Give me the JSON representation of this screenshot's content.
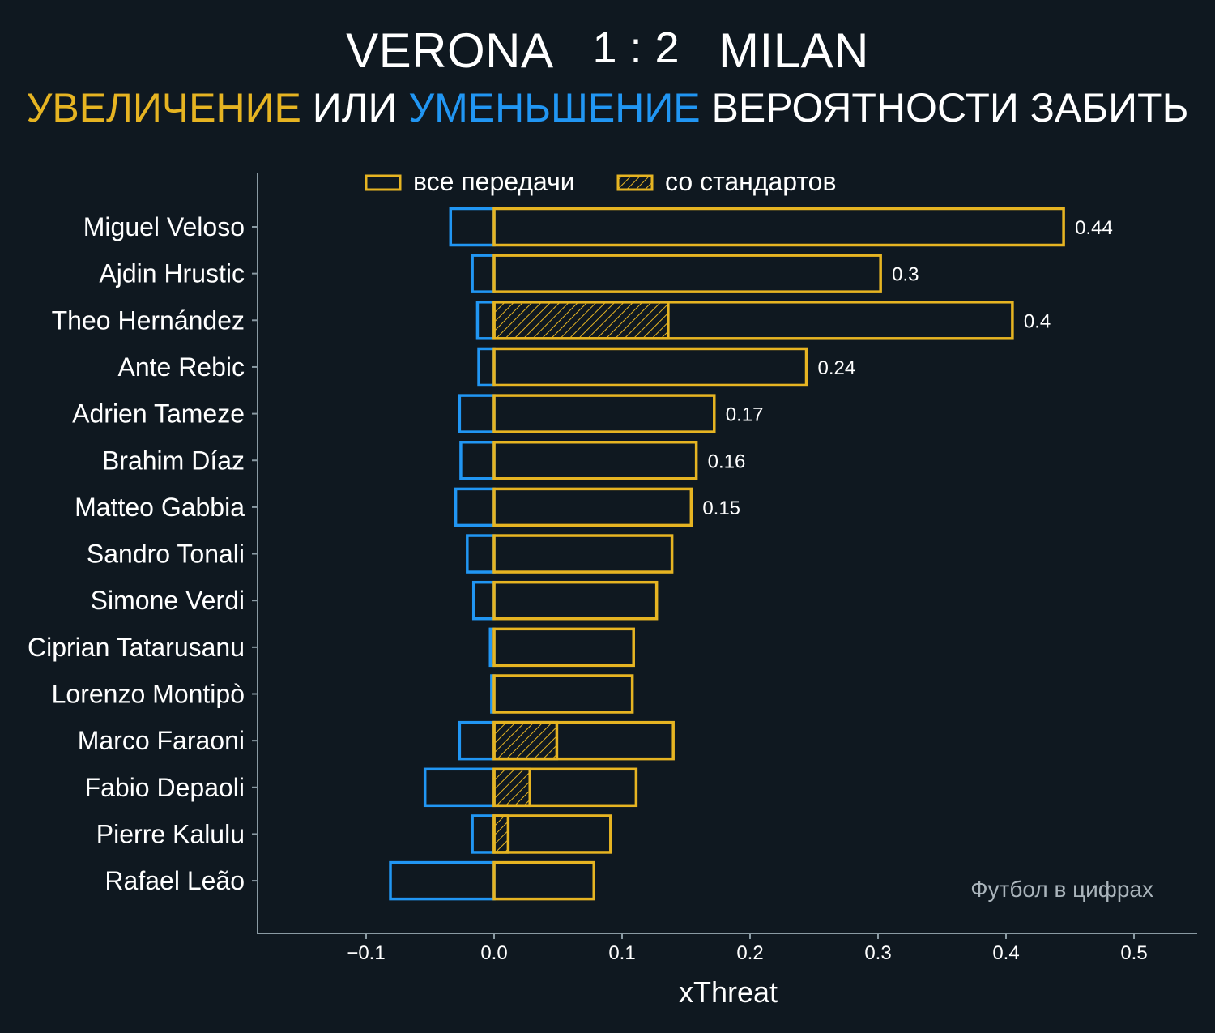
{
  "title": {
    "team_home": "VERONA",
    "score": "1 : 2",
    "team_away": "MILAN",
    "subtitle_increase": "УВЕЛИЧЕНИЕ",
    "subtitle_or": "ИЛИ",
    "subtitle_decrease": "УМЕНЬШЕНИЕ",
    "subtitle_rest": "ВЕРОЯТНОСТИ ЗАБИТЬ"
  },
  "legend": {
    "all_passes": "все передачи",
    "set_pieces": "со стандартов"
  },
  "credit": "Футбол в цифрах",
  "colors": {
    "background": "#0f1820",
    "increase": "#e6b422",
    "decrease": "#2196f3",
    "axis": "#8a9aa3"
  },
  "chart_data": {
    "type": "bar",
    "orientation": "horizontal",
    "xlabel": "xThreat",
    "xlim": [
      -0.185,
      0.55
    ],
    "xticks": [
      -0.1,
      0.0,
      0.1,
      0.2,
      0.3,
      0.4,
      0.5
    ],
    "xtick_labels": [
      "−0.1",
      "0.0",
      "0.1",
      "0.2",
      "0.3",
      "0.4",
      "0.5"
    ],
    "categories": [
      "Miguel Veloso",
      "Ajdin Hrustic",
      "Theo Hernández",
      "Ante Rebic",
      "Adrien Tameze",
      "Brahim Díaz",
      "Matteo Gabbia",
      "Sandro Tonali",
      "Simone Verdi",
      "Ciprian Tatarusanu",
      "Lorenzo Montipò",
      "Marco Faraoni",
      "Fabio Depaoli",
      "Pierre Kalulu",
      "Rafael Leão"
    ],
    "series": [
      {
        "name": "все передачи",
        "values": [
          0.445,
          0.302,
          0.405,
          0.244,
          0.172,
          0.158,
          0.154,
          0.139,
          0.127,
          0.109,
          0.108,
          0.14,
          0.111,
          0.091,
          0.078
        ]
      },
      {
        "name": "со стандартов",
        "values": [
          0,
          0,
          0.136,
          0,
          0,
          0,
          0,
          0,
          0,
          0,
          0,
          0.049,
          0.028,
          0.011,
          0
        ]
      },
      {
        "values": [
          -0.034,
          -0.017,
          -0.013,
          -0.012,
          -0.027,
          -0.026,
          -0.03,
          -0.021,
          -0.016,
          -0.003,
          -0.002,
          -0.027,
          -0.054,
          -0.017,
          -0.081
        ]
      }
    ],
    "value_labels": [
      "0.44",
      "0.3",
      "0.4",
      "0.24",
      "0.17",
      "0.16",
      "0.15",
      "",
      "",
      "",
      "",
      "",
      "",
      "",
      ""
    ],
    "legend_position": "top"
  }
}
